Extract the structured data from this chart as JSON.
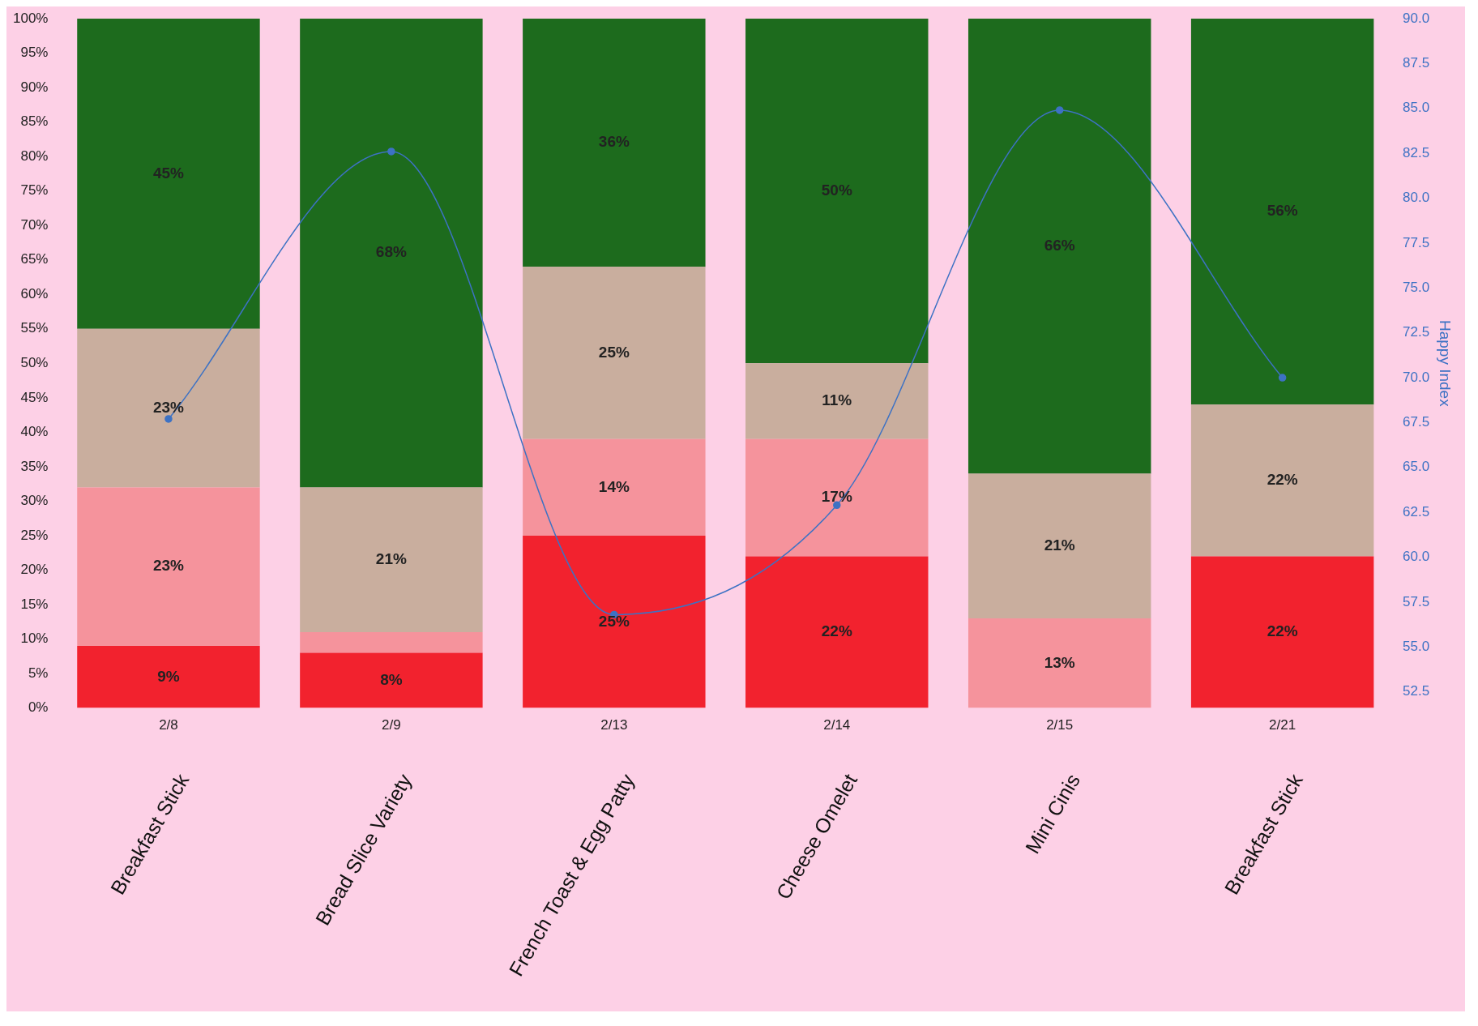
{
  "chart_data": {
    "type": "bar",
    "stacked": true,
    "ylabel": null,
    "y2label": "Happy Index",
    "categories": [
      "2/8",
      "2/9",
      "2/13",
      "2/14",
      "2/15",
      "2/21"
    ],
    "series": [
      {
        "color": "#f2222e",
        "values": [
          9,
          8,
          25,
          22,
          null,
          22
        ],
        "value_labels": [
          "9%",
          "8%",
          "25%",
          "22%",
          null,
          "22%"
        ]
      },
      {
        "color": "#f5939c",
        "values": [
          23,
          3,
          14,
          17,
          13,
          null
        ],
        "value_labels": [
          "23%",
          null,
          "14%",
          "17%",
          "13%",
          null
        ]
      },
      {
        "color": "#c9ae9e",
        "values": [
          23,
          21,
          25,
          11,
          21,
          22
        ],
        "value_labels": [
          "23%",
          "21%",
          "25%",
          "11%",
          "21%",
          "22%"
        ]
      },
      {
        "color": "#1d6b1d",
        "values": [
          45,
          68,
          36,
          50,
          66,
          56
        ],
        "value_labels": [
          "45%",
          "68%",
          "36%",
          "50%",
          "66%",
          "56%"
        ]
      },
      {
        "type": "line",
        "axis": "y2",
        "color": "#3d72c4",
        "marker": "circle",
        "values": [
          67.7,
          82.6,
          56.8,
          62.9,
          84.9,
          70.0
        ]
      }
    ],
    "ylim": [
      0,
      100
    ],
    "yticks": [
      {
        "value": 0,
        "label": "0%"
      },
      {
        "value": 5,
        "label": "5%"
      },
      {
        "value": 10,
        "label": "10%"
      },
      {
        "value": 15,
        "label": "15%"
      },
      {
        "value": 20,
        "label": "20%"
      },
      {
        "value": 25,
        "label": "25%"
      },
      {
        "value": 30,
        "label": "30%"
      },
      {
        "value": 35,
        "label": "35%"
      },
      {
        "value": 40,
        "label": "40%"
      },
      {
        "value": 45,
        "label": "45%"
      },
      {
        "value": 50,
        "label": "50%"
      },
      {
        "value": 55,
        "label": "55%"
      },
      {
        "value": 60,
        "label": "60%"
      },
      {
        "value": 65,
        "label": "65%"
      },
      {
        "value": 70,
        "label": "70%"
      },
      {
        "value": 75,
        "label": "75%"
      },
      {
        "value": 80,
        "label": "80%"
      },
      {
        "value": 85,
        "label": "85%"
      },
      {
        "value": 90,
        "label": "90%"
      },
      {
        "value": 95,
        "label": "95%"
      },
      {
        "value": 100,
        "label": "100%"
      }
    ],
    "y2lim": [
      51.6,
      90
    ],
    "y2ticks": [
      {
        "value": 52.5,
        "label": "52.5"
      },
      {
        "value": 55,
        "label": "55.0"
      },
      {
        "value": 57.5,
        "label": "57.5"
      },
      {
        "value": 60,
        "label": "60.0"
      },
      {
        "value": 62.5,
        "label": "62.5"
      },
      {
        "value": 65,
        "label": "65.0"
      },
      {
        "value": 67.5,
        "label": "67.5"
      },
      {
        "value": 70,
        "label": "70.0"
      },
      {
        "value": 72.5,
        "label": "72.5"
      },
      {
        "value": 75,
        "label": "75.0"
      },
      {
        "value": 77.5,
        "label": "77.5"
      },
      {
        "value": 80,
        "label": "80.0"
      },
      {
        "value": 82.5,
        "label": "82.5"
      },
      {
        "value": 85,
        "label": "85.0"
      },
      {
        "value": 87.5,
        "label": "87.5"
      },
      {
        "value": 90,
        "label": "90.0"
      }
    ],
    "annotations": [
      "Breakfast Stick",
      "Bread Slice Variety",
      "French Toast & Egg Patty",
      "Cheese Omelet",
      "Mini Cinis",
      "Breakfast Stick"
    ],
    "grid": false,
    "legend": false
  }
}
